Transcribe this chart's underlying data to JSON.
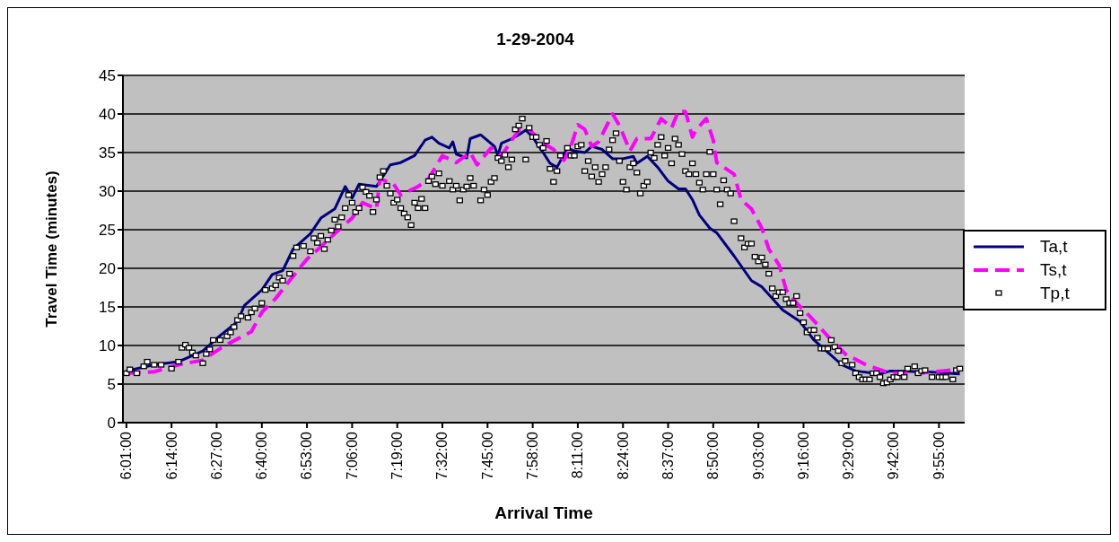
{
  "chart_data": {
    "type": "line",
    "title": "1-29-2004",
    "xlabel": "Arrival Time",
    "ylabel": "Travel Time (minutes)",
    "xlim": [
      6.0,
      10.04
    ],
    "xticks": [
      {
        "value": 6.0167,
        "label": "6:01:00"
      },
      {
        "value": 6.2333,
        "label": "6:14:00"
      },
      {
        "value": 6.45,
        "label": "6:27:00"
      },
      {
        "value": 6.6667,
        "label": "6:40:00"
      },
      {
        "value": 6.8833,
        "label": "6:53:00"
      },
      {
        "value": 7.1,
        "label": "7:06:00"
      },
      {
        "value": 7.3167,
        "label": "7:19:00"
      },
      {
        "value": 7.5333,
        "label": "7:32:00"
      },
      {
        "value": 7.75,
        "label": "7:45:00"
      },
      {
        "value": 7.9667,
        "label": "7:58:00"
      },
      {
        "value": 8.1833,
        "label": "8:11:00"
      },
      {
        "value": 8.4,
        "label": "8:24:00"
      },
      {
        "value": 8.6167,
        "label": "8:37:00"
      },
      {
        "value": 8.8333,
        "label": "8:50:00"
      },
      {
        "value": 9.05,
        "label": "9:03:00"
      },
      {
        "value": 9.2667,
        "label": "9:16:00"
      },
      {
        "value": 9.4833,
        "label": "9:29:00"
      },
      {
        "value": 9.7,
        "label": "9:42:00"
      },
      {
        "value": 9.9167,
        "label": "9:55:00"
      }
    ],
    "ylim": [
      0,
      45
    ],
    "yticks": [
      0,
      5,
      10,
      15,
      20,
      25,
      30,
      35,
      40,
      45
    ],
    "grid": "y",
    "legend": "right",
    "series": [
      {
        "name": "Ta,t",
        "color": "#000080",
        "line_style": "solid",
        "marker": "none",
        "x": [
          6.0167,
          6.15,
          6.2667,
          6.3833,
          6.4667,
          6.55,
          6.5833,
          6.6667,
          6.7167,
          6.7667,
          6.8167,
          6.9,
          6.95,
          7.0167,
          7.0667,
          7.1,
          7.1333,
          7.2167,
          7.2833,
          7.3333,
          7.4,
          7.45,
          7.4833,
          7.5167,
          7.5667,
          7.5833,
          7.6,
          7.65,
          7.6667,
          7.7167,
          7.7833,
          7.8,
          7.8167,
          7.8667,
          7.9,
          7.9333,
          7.9667,
          8.0167,
          8.05,
          8.0833,
          8.1333,
          8.1667,
          8.2167,
          8.25,
          8.3,
          8.35,
          8.4,
          8.45,
          8.4667,
          8.5167,
          8.5667,
          8.6167,
          8.6667,
          8.7,
          8.7333,
          8.7667,
          8.8167,
          8.85,
          8.9333,
          9.0167,
          9.0667,
          9.1167,
          9.1667,
          9.25,
          9.3167,
          9.3833,
          9.45,
          9.5167,
          9.6333,
          9.6833,
          9.85,
          10.0167
        ],
        "values": [
          6.7,
          7.5,
          7.9,
          9.3,
          11.3,
          13.1,
          15.2,
          17.2,
          19.2,
          19.7,
          22.5,
          24.5,
          26.5,
          27.7,
          30.6,
          29.1,
          30.9,
          30.6,
          33.4,
          33.7,
          34.6,
          36.6,
          37.0,
          36.2,
          35.6,
          36.4,
          34.8,
          34.3,
          36.8,
          37.3,
          35.8,
          34.6,
          36.2,
          36.8,
          37.3,
          37.9,
          37.0,
          35.0,
          33.6,
          33.1,
          35.6,
          35.2,
          35.0,
          35.8,
          35.4,
          34.2,
          34.2,
          34.5,
          33.6,
          34.5,
          33.1,
          31.3,
          30.3,
          30.3,
          28.9,
          26.9,
          25.2,
          24.6,
          21.6,
          18.4,
          17.6,
          16.1,
          14.6,
          13.1,
          10.7,
          9.1,
          7.5,
          6.7,
          6.3,
          6.7,
          6.6,
          6.3
        ]
      },
      {
        "name": "Ts,t",
        "color": "#ff00ff",
        "line_style": "dashed",
        "marker": "none",
        "x": [
          6.0167,
          6.15,
          6.2667,
          6.3833,
          6.4833,
          6.6167,
          6.6667,
          6.7333,
          6.8,
          6.8833,
          6.95,
          7.0167,
          7.1,
          7.15,
          7.2167,
          7.2333,
          7.3,
          7.3333,
          7.4167,
          7.4667,
          7.5333,
          7.6,
          7.6667,
          7.7,
          7.7667,
          7.8167,
          7.8667,
          7.9,
          7.95,
          8.0167,
          8.0667,
          8.1167,
          8.15,
          8.1833,
          8.2167,
          8.25,
          8.2833,
          8.35,
          8.3833,
          8.4333,
          8.4667,
          8.5333,
          8.5833,
          8.6333,
          8.6667,
          8.7,
          8.7333,
          8.75,
          8.8,
          8.8333,
          8.85,
          8.9333,
          8.9667,
          9.0167,
          9.0667,
          9.1,
          9.15,
          9.1833,
          9.2333,
          9.3,
          9.3833,
          9.4667,
          9.5667,
          9.6833,
          9.8167,
          9.9333,
          10.0167
        ],
        "values": [
          6.4,
          6.6,
          7.5,
          8.1,
          9.9,
          11.8,
          14.3,
          16.1,
          18.4,
          21.2,
          22.8,
          24.5,
          26.5,
          28.5,
          27.7,
          31.6,
          30.9,
          29.5,
          30.6,
          31.6,
          34.6,
          33.7,
          35.0,
          33.4,
          35.6,
          34.6,
          36.6,
          37.9,
          38.0,
          36.2,
          35.4,
          34.0,
          35.8,
          38.6,
          38.0,
          35.8,
          36.4,
          40.0,
          38.5,
          35.2,
          36.8,
          36.8,
          39.4,
          38.2,
          40.4,
          40.3,
          37.0,
          37.9,
          39.4,
          36.6,
          33.7,
          32.2,
          28.9,
          27.7,
          25.2,
          22.5,
          20.4,
          17.2,
          15.5,
          13.7,
          11.2,
          8.9,
          7.5,
          6.4,
          6.4,
          6.7,
          6.9
        ]
      },
      {
        "name": "Tp,t",
        "type": "scatter",
        "color": "#000000",
        "marker": "square",
        "x": [
          6.0167,
          6.0333,
          6.0667,
          6.1,
          6.1167,
          6.15,
          6.1833,
          6.2333,
          6.2667,
          6.2833,
          6.3,
          6.3167,
          6.3333,
          6.35,
          6.3833,
          6.4,
          6.4167,
          6.4333,
          6.4667,
          6.5,
          6.5167,
          6.5333,
          6.55,
          6.5667,
          6.6,
          6.6167,
          6.6333,
          6.6667,
          6.6833,
          6.7167,
          6.7333,
          6.75,
          6.7667,
          6.8,
          6.8167,
          6.8333,
          6.8667,
          6.9,
          6.9167,
          6.9333,
          6.95,
          6.9667,
          6.9833,
          7.0,
          7.0167,
          7.0333,
          7.05,
          7.0667,
          7.0833,
          7.1,
          7.1167,
          7.1333,
          7.15,
          7.1667,
          7.1833,
          7.2,
          7.2167,
          7.2333,
          7.25,
          7.2667,
          7.2833,
          7.3,
          7.3167,
          7.3333,
          7.35,
          7.3667,
          7.3833,
          7.4,
          7.4167,
          7.4333,
          7.45,
          7.4667,
          7.4833,
          7.5,
          7.5167,
          7.5333,
          7.5667,
          7.5833,
          7.6,
          7.6167,
          7.6333,
          7.65,
          7.6667,
          7.6833,
          7.7167,
          7.7333,
          7.75,
          7.7667,
          7.7833,
          7.8,
          7.8167,
          7.8333,
          7.85,
          7.8667,
          7.8833,
          7.9,
          7.9167,
          7.9333,
          7.95,
          7.9667,
          7.9833,
          8.0,
          8.0167,
          8.0333,
          8.05,
          8.0667,
          8.0833,
          8.1,
          8.1333,
          8.15,
          8.1667,
          8.1833,
          8.2,
          8.2167,
          8.2333,
          8.25,
          8.2667,
          8.2833,
          8.3,
          8.3167,
          8.3333,
          8.35,
          8.3667,
          8.3833,
          8.4,
          8.4167,
          8.4333,
          8.45,
          8.4667,
          8.4833,
          8.5,
          8.5167,
          8.5333,
          8.55,
          8.5667,
          8.5833,
          8.6,
          8.6167,
          8.6333,
          8.65,
          8.6667,
          8.6833,
          8.7,
          8.7167,
          8.7333,
          8.75,
          8.7667,
          8.7833,
          8.8,
          8.8167,
          8.8333,
          8.85,
          8.8667,
          8.8833,
          8.9,
          8.9167,
          8.9333,
          8.9667,
          8.9833,
          9.0,
          9.0167,
          9.0333,
          9.05,
          9.0667,
          9.0833,
          9.1,
          9.1167,
          9.1333,
          9.15,
          9.1667,
          9.1833,
          9.2,
          9.2167,
          9.2333,
          9.25,
          9.2667,
          9.2833,
          9.3,
          9.3167,
          9.3333,
          9.35,
          9.3667,
          9.3833,
          9.4,
          9.4167,
          9.4333,
          9.45,
          9.4667,
          9.5,
          9.5167,
          9.5333,
          9.55,
          9.5667,
          9.5833,
          9.6,
          9.6167,
          9.6333,
          9.65,
          9.6667,
          9.6833,
          9.7,
          9.7167,
          9.7333,
          9.75,
          9.7667,
          9.8,
          9.8167,
          9.8333,
          9.85,
          9.8833,
          9.9167,
          9.9333,
          9.95,
          9.9833,
          10.0,
          10.0167
        ],
        "values": [
          6.4,
          6.9,
          6.4,
          7.3,
          7.9,
          7.5,
          7.5,
          7.0,
          7.9,
          9.7,
          10.1,
          9.7,
          9.1,
          8.7,
          7.7,
          8.9,
          9.5,
          10.7,
          10.7,
          11.2,
          11.7,
          12.4,
          13.3,
          13.8,
          13.6,
          14.3,
          14.8,
          15.5,
          17.2,
          17.4,
          17.8,
          18.8,
          18.4,
          19.3,
          21.6,
          22.7,
          22.9,
          22.2,
          23.9,
          23.3,
          24.2,
          22.5,
          23.7,
          24.9,
          26.3,
          25.4,
          26.6,
          27.8,
          29.5,
          28.5,
          27.3,
          27.8,
          30.5,
          29.9,
          29.4,
          27.3,
          28.9,
          31.8,
          32.6,
          30.7,
          29.7,
          28.5,
          28.9,
          27.8,
          27.1,
          26.6,
          25.6,
          28.5,
          27.8,
          29.0,
          27.8,
          31.3,
          31.9,
          30.9,
          32.3,
          30.7,
          31.3,
          30.2,
          30.7,
          28.8,
          30.2,
          30.6,
          31.7,
          30.7,
          28.8,
          30.2,
          29.5,
          31.2,
          31.7,
          34.3,
          33.9,
          34.7,
          33.1,
          34.1,
          38.0,
          38.5,
          39.4,
          34.1,
          38.2,
          37.0,
          37.0,
          36.0,
          35.6,
          36.5,
          32.9,
          31.2,
          32.6,
          34.6,
          35.6,
          34.6,
          34.6,
          35.8,
          36.0,
          32.6,
          33.9,
          31.9,
          33.1,
          31.2,
          32.2,
          33.1,
          35.4,
          36.6,
          37.5,
          33.9,
          31.2,
          30.2,
          33.1,
          33.6,
          32.4,
          29.7,
          30.7,
          31.2,
          35.0,
          34.3,
          36.0,
          37.0,
          34.6,
          35.6,
          33.6,
          36.8,
          36.0,
          34.8,
          32.6,
          32.2,
          33.6,
          32.2,
          31.1,
          30.2,
          32.2,
          35.1,
          32.2,
          30.2,
          28.3,
          31.4,
          30.2,
          29.7,
          26.1,
          23.9,
          22.7,
          23.2,
          23.2,
          21.5,
          20.9,
          21.4,
          20.5,
          19.3,
          17.4,
          16.4,
          16.9,
          16.9,
          16.0,
          15.5,
          15.5,
          16.4,
          14.2,
          13.0,
          11.7,
          12.0,
          12.0,
          11.0,
          9.6,
          9.6,
          9.6,
          10.7,
          9.8,
          9.3,
          7.7,
          8.0,
          7.5,
          6.4,
          5.9,
          5.6,
          5.6,
          5.6,
          6.4,
          6.4,
          5.9,
          5.1,
          5.2,
          5.6,
          5.9,
          5.9,
          6.4,
          5.9,
          7.0,
          7.3,
          6.4,
          6.7,
          6.8,
          5.9,
          5.9,
          5.9,
          5.9,
          5.6,
          6.8,
          7.0
        ]
      }
    ]
  }
}
